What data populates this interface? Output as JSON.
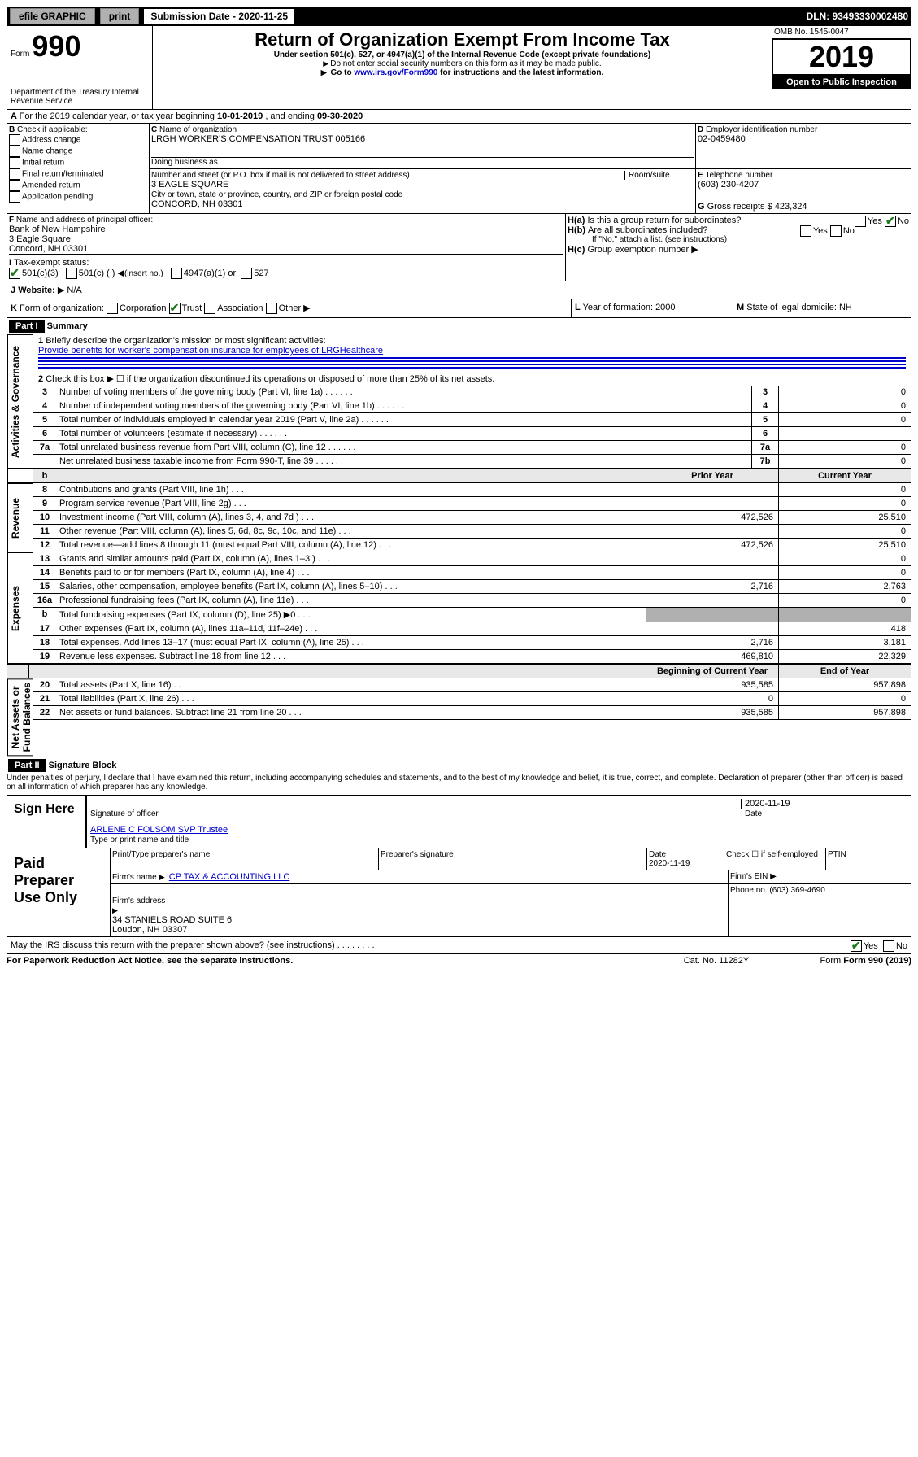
{
  "topbar": {
    "efile": "efile GRAPHIC",
    "print": "print",
    "sub_label": "Submission Date - 2020-11-25",
    "dln": "DLN: 93493330002480"
  },
  "header": {
    "form_word": "Form",
    "form_num": "990",
    "dept": "Department of the Treasury\nInternal Revenue Service",
    "title": "Return of Organization Exempt From Income Tax",
    "subtitle": "Under section 501(c), 527, or 4947(a)(1) of the Internal Revenue Code (except private foundations)",
    "note1": "Do not enter social security numbers on this form as it may be made public.",
    "note2_pre": "Go to ",
    "note2_link": "www.irs.gov/Form990",
    "note2_post": " for instructions and the latest information.",
    "omb": "OMB No. 1545-0047",
    "year": "2019",
    "open": "Open to Public Inspection"
  },
  "A": {
    "text_pre": "For the 2019 calendar year, or tax year beginning ",
    "begin": "10-01-2019",
    "mid": " , and ending ",
    "end": "09-30-2020"
  },
  "B": {
    "label": "Check if applicable:",
    "opts": [
      "Address change",
      "Name change",
      "Initial return",
      "Final return/terminated",
      "Amended return",
      "Application pending"
    ]
  },
  "C": {
    "name_lbl": "Name of organization",
    "name": "LRGH WORKER'S COMPENSATION TRUST 005166",
    "dba_lbl": "Doing business as",
    "addr_lbl": "Number and street (or P.O. box if mail is not delivered to street address)",
    "room_lbl": "Room/suite",
    "addr": "3 EAGLE SQUARE",
    "city_lbl": "City or town, state or province, country, and ZIP or foreign postal code",
    "city": "CONCORD, NH  03301"
  },
  "D": {
    "label": "Employer identification number",
    "value": "02-0459480"
  },
  "E": {
    "label": "Telephone number",
    "value": "(603) 230-4207"
  },
  "G": {
    "label": "Gross receipts $",
    "value": "423,324"
  },
  "F": {
    "label": "Name and address of principal officer:",
    "name": "Bank of New Hampshire",
    "addr1": "3 Eagle Square",
    "addr2": "Concord, NH  03301"
  },
  "Ha": {
    "label": "Is this a group return for subordinates?",
    "yes": "Yes",
    "no": "No"
  },
  "Hb": {
    "label": "Are all subordinates included?",
    "yes": "Yes",
    "no": "No",
    "note": "If \"No,\" attach a list. (see instructions)"
  },
  "Hc": {
    "label": "Group exemption number"
  },
  "I": {
    "label": "Tax-exempt status:",
    "o1": "501(c)(3)",
    "o2": "501(c) (  )",
    "o2_hint": "(insert no.)",
    "o3": "4947(a)(1) or",
    "o4": "527"
  },
  "J": {
    "label": "Website:",
    "value": "N/A"
  },
  "K": {
    "label": "Form of organization:",
    "opts": [
      "Corporation",
      "Trust",
      "Association",
      "Other"
    ]
  },
  "L": {
    "label": "Year of formation:",
    "value": "2000"
  },
  "M": {
    "label": "State of legal domicile:",
    "value": "NH"
  },
  "partI": {
    "hdr": "Part I",
    "title": "Summary",
    "q1": "Briefly describe the organization's mission or most significant activities:",
    "q1_ans": "Provide benefits for worker's compensation insurance for employees of LRGHealthcare",
    "q2": "Check this box ▶ ☐  if the organization discontinued its operations or disposed of more than 25% of its net assets.",
    "rows_ag": [
      {
        "n": "3",
        "t": "Number of voting members of the governing body (Part VI, line 1a)",
        "k": "3",
        "v": "0"
      },
      {
        "n": "4",
        "t": "Number of independent voting members of the governing body (Part VI, line 1b)",
        "k": "4",
        "v": "0"
      },
      {
        "n": "5",
        "t": "Total number of individuals employed in calendar year 2019 (Part V, line 2a)",
        "k": "5",
        "v": "0"
      },
      {
        "n": "6",
        "t": "Total number of volunteers (estimate if necessary)",
        "k": "6",
        "v": ""
      },
      {
        "n": "7a",
        "t": "Total unrelated business revenue from Part VIII, column (C), line 12",
        "k": "7a",
        "v": "0"
      },
      {
        "n": "",
        "t": "Net unrelated business taxable income from Form 990-T, line 39",
        "k": "7b",
        "v": "0"
      }
    ],
    "col_prior": "Prior Year",
    "col_curr": "Current Year",
    "rows_rev": [
      {
        "n": "8",
        "t": "Contributions and grants (Part VIII, line 1h)",
        "p": "",
        "c": "0"
      },
      {
        "n": "9",
        "t": "Program service revenue (Part VIII, line 2g)",
        "p": "",
        "c": "0"
      },
      {
        "n": "10",
        "t": "Investment income (Part VIII, column (A), lines 3, 4, and 7d )",
        "p": "472,526",
        "c": "25,510"
      },
      {
        "n": "11",
        "t": "Other revenue (Part VIII, column (A), lines 5, 6d, 8c, 9c, 10c, and 11e)",
        "p": "",
        "c": "0"
      },
      {
        "n": "12",
        "t": "Total revenue—add lines 8 through 11 (must equal Part VIII, column (A), line 12)",
        "p": "472,526",
        "c": "25,510"
      }
    ],
    "rows_exp": [
      {
        "n": "13",
        "t": "Grants and similar amounts paid (Part IX, column (A), lines 1–3 )",
        "p": "",
        "c": "0"
      },
      {
        "n": "14",
        "t": "Benefits paid to or for members (Part IX, column (A), line 4)",
        "p": "",
        "c": "0"
      },
      {
        "n": "15",
        "t": "Salaries, other compensation, employee benefits (Part IX, column (A), lines 5–10)",
        "p": "2,716",
        "c": "2,763"
      },
      {
        "n": "16a",
        "t": "Professional fundraising fees (Part IX, column (A), line 11e)",
        "p": "",
        "c": "0"
      },
      {
        "n": "b",
        "t": "Total fundraising expenses (Part IX, column (D), line 25) ▶0",
        "p": "shade",
        "c": "shade"
      },
      {
        "n": "17",
        "t": "Other expenses (Part IX, column (A), lines 11a–11d, 11f–24e)",
        "p": "",
        "c": "418"
      },
      {
        "n": "18",
        "t": "Total expenses. Add lines 13–17 (must equal Part IX, column (A), line 25)",
        "p": "2,716",
        "c": "3,181"
      },
      {
        "n": "19",
        "t": "Revenue less expenses. Subtract line 18 from line 12",
        "p": "469,810",
        "c": "22,329"
      }
    ],
    "col_boy": "Beginning of Current Year",
    "col_eoy": "End of Year",
    "rows_na": [
      {
        "n": "20",
        "t": "Total assets (Part X, line 16)",
        "p": "935,585",
        "c": "957,898"
      },
      {
        "n": "21",
        "t": "Total liabilities (Part X, line 26)",
        "p": "0",
        "c": "0"
      },
      {
        "n": "22",
        "t": "Net assets or fund balances. Subtract line 21 from line 20",
        "p": "935,585",
        "c": "957,898"
      }
    ],
    "side_ag": "Activities & Governance",
    "side_rev": "Revenue",
    "side_exp": "Expenses",
    "side_na": "Net Assets or\nFund Balances"
  },
  "partII": {
    "hdr": "Part II",
    "title": "Signature Block",
    "perjury": "Under penalties of perjury, I declare that I have examined this return, including accompanying schedules and statements, and to the best of my knowledge and belief, it is true, correct, and complete. Declaration of preparer (other than officer) is based on all information of which preparer has any knowledge.",
    "sign_here": "Sign Here",
    "sig_date": "2020-11-19",
    "sig_officer": "Signature of officer",
    "sig_date_lbl": "Date",
    "officer_name": "ARLENE C FOLSOM SVP Trustee",
    "officer_name_lbl": "Type or print name and title",
    "paid": "Paid Preparer Use Only",
    "pp_name_lbl": "Print/Type preparer's name",
    "pp_sig_lbl": "Preparer's signature",
    "pp_date_lbl": "Date",
    "pp_date": "2020-11-19",
    "pp_check_lbl": "Check ☐ if self-employed",
    "pp_ptin_lbl": "PTIN",
    "firm_name_lbl": "Firm's name",
    "firm_name": "CP TAX & ACCOUNTING LLC",
    "firm_ein_lbl": "Firm's EIN",
    "firm_addr_lbl": "Firm's address",
    "firm_addr": "34 STANIELS ROAD SUITE 6\nLoudon, NH  03307",
    "firm_phone_lbl": "Phone no.",
    "firm_phone": "(603) 369-4690",
    "discuss": "May the IRS discuss this return with the preparer shown above? (see instructions)",
    "yes": "Yes",
    "no": "No"
  },
  "footer": {
    "pra": "For Paperwork Reduction Act Notice, see the separate instructions.",
    "cat": "Cat. No. 11282Y",
    "form": "Form 990 (2019)"
  }
}
